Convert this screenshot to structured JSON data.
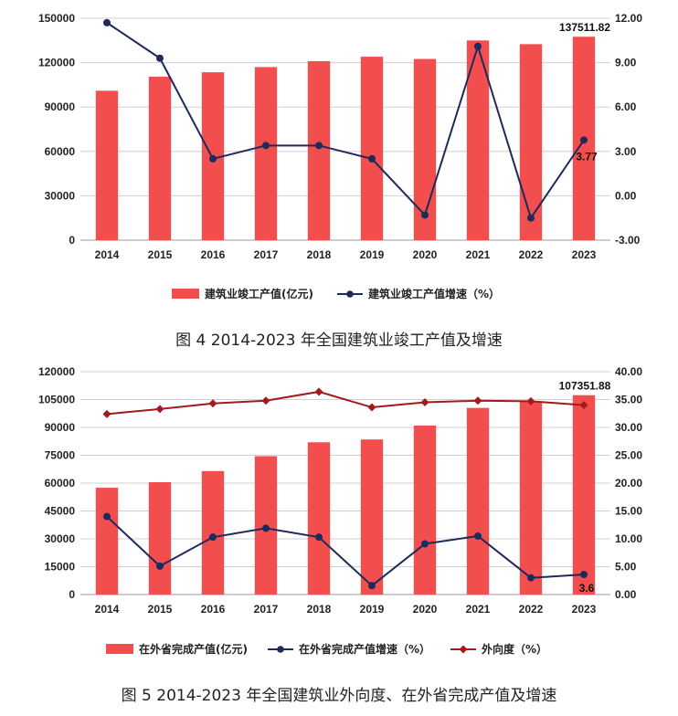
{
  "chart_data": [
    {
      "type": "bar",
      "categories": [
        "2014",
        "2015",
        "2016",
        "2017",
        "2018",
        "2019",
        "2020",
        "2021",
        "2022",
        "2023"
      ],
      "series": [
        {
          "name": "建筑业竣工产值(亿元)",
          "kind": "bar",
          "axis": "left",
          "color": "#f24e4e",
          "values": [
            101000,
            110500,
            113500,
            117000,
            121000,
            124000,
            122500,
            135000,
            132500,
            137511.82
          ]
        },
        {
          "name": "建筑业竣工产值增速（%）",
          "kind": "line",
          "axis": "right",
          "color": "#1f2a5c",
          "values": [
            11.7,
            9.3,
            2.5,
            3.4,
            3.4,
            2.5,
            -1.3,
            10.1,
            -1.5,
            3.77
          ]
        }
      ],
      "left_axis": {
        "ylim": [
          0,
          150000
        ],
        "ticks": [
          "0",
          "30000",
          "60000",
          "90000",
          "120000",
          "150000"
        ]
      },
      "right_axis": {
        "ylim": [
          -3,
          12
        ],
        "ticks": [
          "-3.00",
          "0.00",
          "3.00",
          "6.00",
          "9.00",
          "12.00"
        ]
      },
      "labels": {
        "last_bar": "137511.82",
        "last_point": "3.77"
      },
      "grid": true,
      "legend": "bottom",
      "caption": "图 4 2014-2023 年全国建筑业竣工产值及增速"
    },
    {
      "type": "bar",
      "categories": [
        "2014",
        "2015",
        "2016",
        "2017",
        "2018",
        "2019",
        "2020",
        "2021",
        "2022",
        "2023"
      ],
      "series": [
        {
          "name": "在外省完成产值(亿元)",
          "kind": "bar",
          "axis": "left",
          "color": "#f24e4e",
          "values": [
            57500,
            60500,
            66500,
            74500,
            82000,
            83500,
            91000,
            100500,
            104000,
            107351.88
          ]
        },
        {
          "name": "在外省完成产值增速（%）",
          "kind": "line",
          "axis": "right",
          "color": "#1f2a5c",
          "values": [
            14.0,
            5.1,
            10.3,
            11.9,
            10.3,
            1.6,
            9.1,
            10.5,
            3.0,
            3.6
          ]
        },
        {
          "name": "外向度（%）",
          "kind": "line",
          "axis": "right",
          "color": "#a3191c",
          "values": [
            32.4,
            33.3,
            34.3,
            34.8,
            36.4,
            33.6,
            34.5,
            34.8,
            34.7,
            34.0
          ]
        }
      ],
      "left_axis": {
        "ylim": [
          0,
          120000
        ],
        "ticks": [
          "0",
          "15000",
          "30000",
          "45000",
          "60000",
          "75000",
          "90000",
          "105000",
          "120000"
        ]
      },
      "right_axis": {
        "ylim": [
          0,
          40
        ],
        "ticks": [
          "0.00",
          "5.00",
          "10.00",
          "15.00",
          "20.00",
          "25.00",
          "30.00",
          "35.00",
          "40.00"
        ]
      },
      "labels": {
        "last_bar": "107351.88",
        "last_point": "3.6"
      },
      "grid": true,
      "legend": "bottom",
      "caption": "图 5 2014-2023 年全国建筑业外向度、在外省完成产值及增速"
    }
  ]
}
